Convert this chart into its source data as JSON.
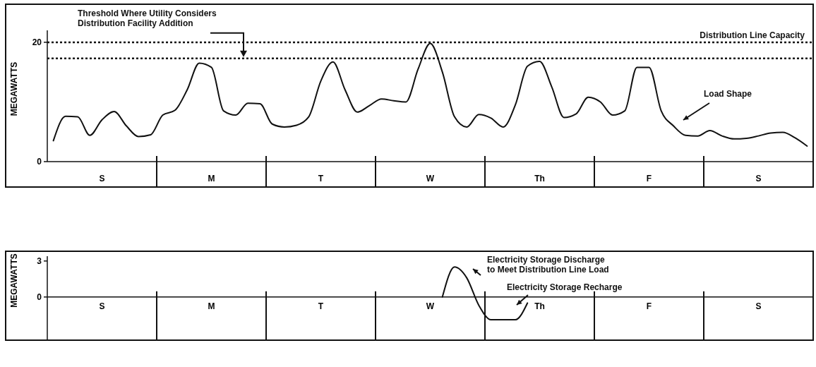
{
  "chart_data": [
    {
      "type": "line",
      "ylabel": "MEGAWATTS",
      "ylim": [
        0,
        22
      ],
      "yticks": [
        0,
        20
      ],
      "categories": [
        null,
        null,
        null,
        null,
        "S",
        null,
        null,
        null,
        null,
        null,
        null,
        null,
        null,
        "M",
        null,
        null,
        null,
        null,
        null,
        null,
        null,
        null,
        "T",
        null,
        null,
        null,
        null,
        null,
        null,
        null,
        null,
        "W",
        null,
        null,
        null,
        null,
        null,
        null,
        null,
        null,
        "Th",
        null,
        null,
        null,
        null,
        null,
        null,
        null,
        null,
        "F",
        null,
        null,
        null,
        null,
        null,
        null,
        null,
        null,
        "S",
        null,
        null,
        null,
        null
      ],
      "line_style": "solid",
      "series": [
        {
          "color": "#111111",
          "values": [
            3.5,
            7.6,
            7.5,
            4.4,
            7.0,
            8.4,
            6.0,
            4.2,
            4.5,
            7.8,
            8.6,
            12.0,
            16.5,
            15.8,
            8.5,
            7.8,
            9.8,
            9.7,
            6.3,
            5.8,
            6.1,
            7.5,
            13.5,
            16.7,
            12.0,
            8.3,
            9.4,
            10.5,
            10.2,
            10.0,
            15.5,
            19.8,
            15.0,
            7.5,
            5.8,
            7.9,
            7.3,
            5.8,
            9.5,
            16.0,
            16.8,
            12.5,
            7.4,
            8.0,
            10.8,
            10.0,
            7.8,
            8.5,
            15.8,
            15.8,
            8.5,
            6.0,
            4.4,
            4.3,
            5.2,
            4.3,
            3.8,
            3.9,
            4.3,
            4.8,
            4.9,
            4.0,
            2.6
          ]
        }
      ],
      "ref_lines": [
        {
          "axis": "y",
          "value": 20,
          "label": "Distribution Line Capacity",
          "line_style": "dotted",
          "color": "#111111"
        },
        {
          "axis": "y",
          "value": 17.3,
          "label": "Threshold Where Utility Considers\nDistribution Facility Addition",
          "line_style": "dotted",
          "color": "#111111"
        }
      ],
      "annotations": [
        "Load Shape"
      ]
    },
    {
      "type": "line",
      "ylabel": "MEGAWATTS",
      "ylim": [
        -3.6,
        3.4
      ],
      "yticks": [
        0,
        3
      ],
      "categories": [
        null,
        null,
        null,
        null,
        "S",
        null,
        null,
        null,
        null,
        null,
        null,
        null,
        null,
        "M",
        null,
        null,
        null,
        null,
        null,
        null,
        null,
        null,
        "T",
        null,
        null,
        null,
        null,
        null,
        null,
        null,
        null,
        "W",
        null,
        null,
        null,
        null,
        null,
        null,
        null,
        null,
        "Th",
        null,
        null,
        null,
        null,
        null,
        null,
        null,
        null,
        "F",
        null,
        null,
        null,
        null,
        null,
        null,
        null,
        null,
        "S",
        null,
        null,
        null,
        null
      ],
      "line_style": "solid",
      "series": [
        {
          "color": "#111111",
          "values": [
            null,
            null,
            null,
            null,
            null,
            null,
            null,
            null,
            null,
            null,
            null,
            null,
            null,
            null,
            null,
            null,
            null,
            null,
            null,
            null,
            null,
            null,
            null,
            null,
            null,
            null,
            null,
            null,
            null,
            null,
            null,
            null,
            0,
            2.5,
            1.6,
            -0.7,
            -1.9,
            -1.9,
            -1.9,
            -0.5,
            null,
            null,
            null,
            null,
            null,
            null,
            null,
            null,
            null,
            null,
            null,
            null,
            null,
            null,
            null,
            null,
            null,
            null,
            null,
            null,
            null,
            null,
            null
          ]
        }
      ],
      "annotations": [
        "Electricity Storage Discharge\nto Meet Distribution Line Load",
        "Electricity Storage Recharge"
      ]
    }
  ]
}
